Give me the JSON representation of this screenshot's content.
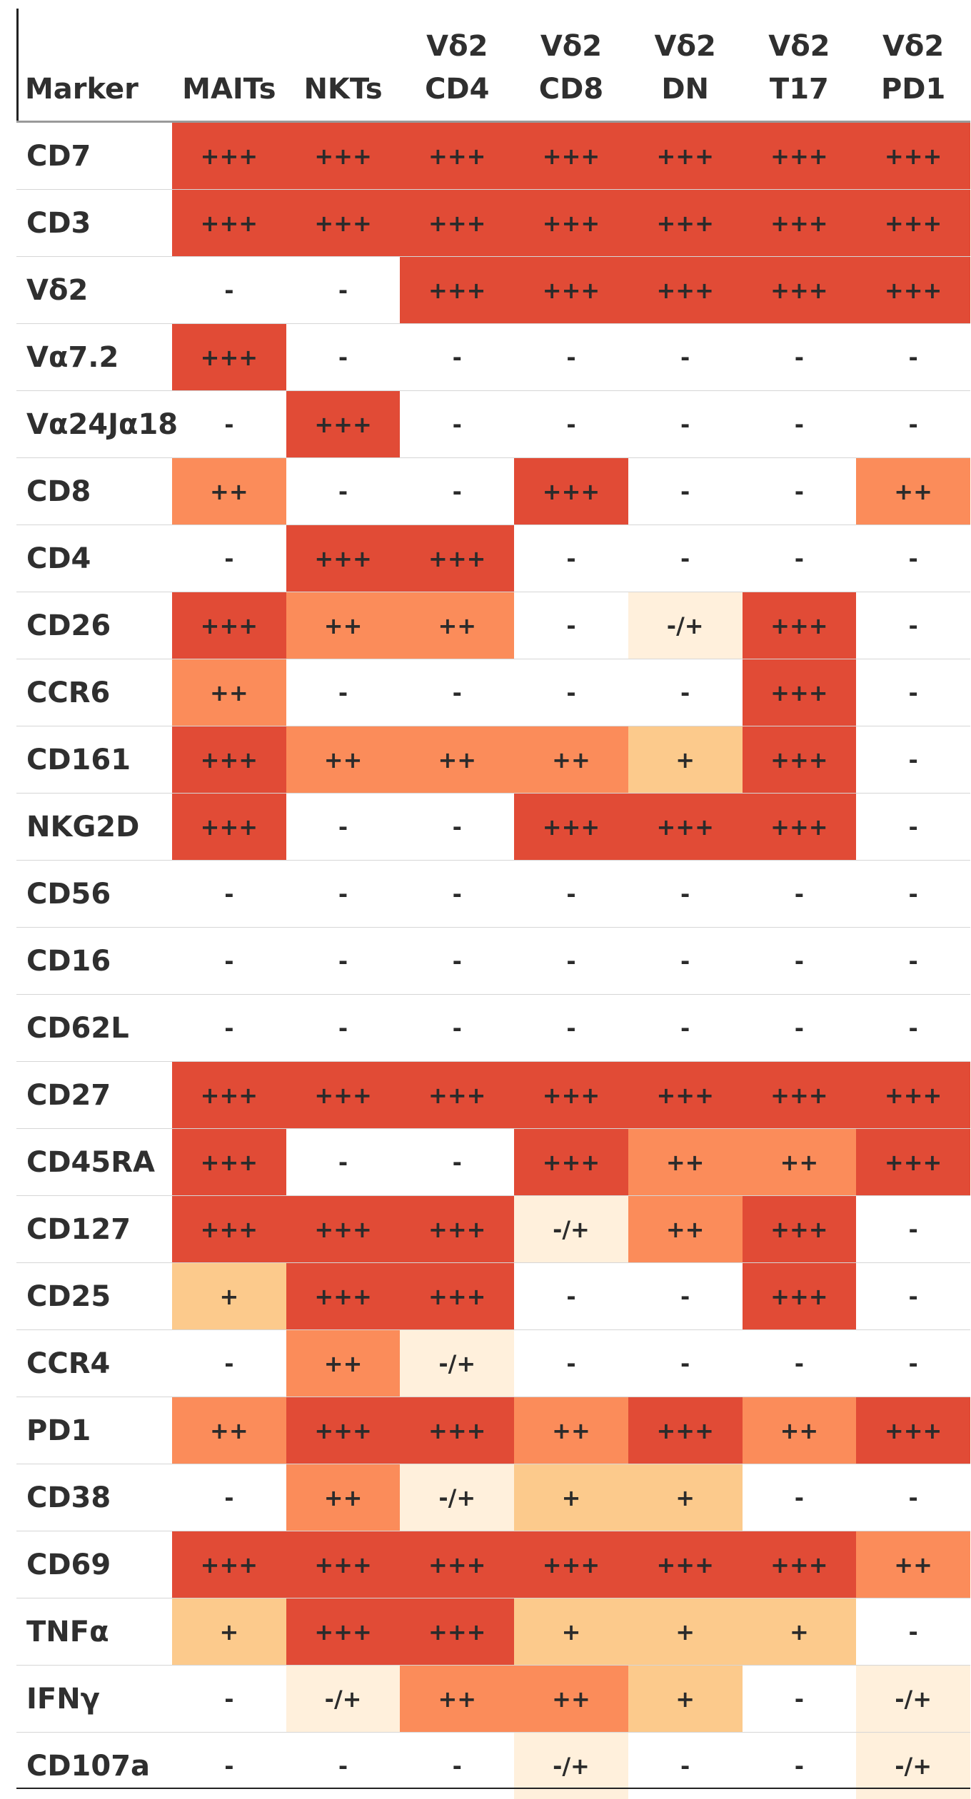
{
  "colors": {
    "+++": "#e14b36",
    "++": "#fb8c5a",
    "+": "#fcca8c",
    "-/+": "#fff0dc",
    "-": "#ffffff"
  },
  "columns": [
    "Marker",
    "MAITs",
    "NKTs",
    "Vδ2 CD4",
    "Vδ2 CD8",
    "Vδ2 DN",
    "Vδ2 T17",
    "Vδ2 PD1"
  ],
  "column_lines": [
    [
      "Marker"
    ],
    [
      "MAITs"
    ],
    [
      "NKTs"
    ],
    [
      "Vδ2",
      "CD4"
    ],
    [
      "Vδ2",
      "CD8"
    ],
    [
      "Vδ2",
      "DN"
    ],
    [
      "Vδ2",
      "T17"
    ],
    [
      "Vδ2",
      "PD1"
    ]
  ],
  "rows": [
    {
      "marker": "CD7",
      "values": [
        "+++",
        "+++",
        "+++",
        "+++",
        "+++",
        "+++",
        "+++"
      ]
    },
    {
      "marker": "CD3",
      "values": [
        "+++",
        "+++",
        "+++",
        "+++",
        "+++",
        "+++",
        "+++"
      ]
    },
    {
      "marker": "Vδ2",
      "values": [
        "-",
        "-",
        "+++",
        "+++",
        "+++",
        "+++",
        "+++"
      ]
    },
    {
      "marker": "Vα7.2",
      "values": [
        "+++",
        "-",
        "-",
        "-",
        "-",
        "-",
        "-"
      ]
    },
    {
      "marker": "Vα24Jα18",
      "values": [
        "-",
        "+++",
        "-",
        "-",
        "-",
        "-",
        "-"
      ]
    },
    {
      "marker": "CD8",
      "values": [
        "++",
        "-",
        "-",
        "+++",
        "-",
        "-",
        "++"
      ]
    },
    {
      "marker": "CD4",
      "values": [
        "-",
        "+++",
        "+++",
        "-",
        "-",
        "-",
        "-"
      ]
    },
    {
      "marker": "CD26",
      "values": [
        "+++",
        "++",
        "++",
        "-",
        "-/+",
        "+++",
        "-"
      ]
    },
    {
      "marker": "CCR6",
      "values": [
        "++",
        "-",
        "-",
        "-",
        "-",
        "+++",
        "-"
      ]
    },
    {
      "marker": "CD161",
      "values": [
        "+++",
        "++",
        "++",
        "++",
        "+",
        "+++",
        "-"
      ]
    },
    {
      "marker": "NKG2D",
      "values": [
        "+++",
        "-",
        "-",
        "+++",
        "+++",
        "+++",
        "-"
      ]
    },
    {
      "marker": "CD56",
      "values": [
        "-",
        "-",
        "-",
        "-",
        "-",
        "-",
        "-"
      ]
    },
    {
      "marker": "CD16",
      "values": [
        "-",
        "-",
        "-",
        "-",
        "-",
        "-",
        "-"
      ]
    },
    {
      "marker": "CD62L",
      "values": [
        "-",
        "-",
        "-",
        "-",
        "-",
        "-",
        "-"
      ]
    },
    {
      "marker": "CD27",
      "values": [
        "+++",
        "+++",
        "+++",
        "+++",
        "+++",
        "+++",
        "+++"
      ]
    },
    {
      "marker": "CD45RA",
      "values": [
        "+++",
        "-",
        "-",
        "+++",
        "++",
        "++",
        "+++"
      ]
    },
    {
      "marker": "CD127",
      "values": [
        "+++",
        "+++",
        "+++",
        "-/+",
        "++",
        "+++",
        "-"
      ]
    },
    {
      "marker": "CD25",
      "values": [
        "+",
        "+++",
        "+++",
        "-",
        "-",
        "+++",
        "-"
      ]
    },
    {
      "marker": "CCR4",
      "values": [
        "-",
        "++",
        "-/+",
        "-",
        "-",
        "-",
        "-"
      ]
    },
    {
      "marker": "PD1",
      "values": [
        "++",
        "+++",
        "+++",
        "++",
        "+++",
        "++",
        "+++"
      ]
    },
    {
      "marker": "CD38",
      "values": [
        "-",
        "++",
        "-/+",
        "+",
        "+",
        "-",
        "-"
      ]
    },
    {
      "marker": "CD69",
      "values": [
        "+++",
        "+++",
        "+++",
        "+++",
        "+++",
        "+++",
        "++"
      ]
    },
    {
      "marker": "TNFα",
      "values": [
        "+",
        "+++",
        "+++",
        "+",
        "+",
        "+",
        "-"
      ]
    },
    {
      "marker": "IFNγ",
      "values": [
        "-",
        "-/+",
        "++",
        "++",
        "+",
        "-",
        "-/+"
      ]
    },
    {
      "marker": "CD107a",
      "values": [
        "-",
        "-",
        "-",
        "-/+",
        "-",
        "-",
        "-/+"
      ]
    }
  ]
}
